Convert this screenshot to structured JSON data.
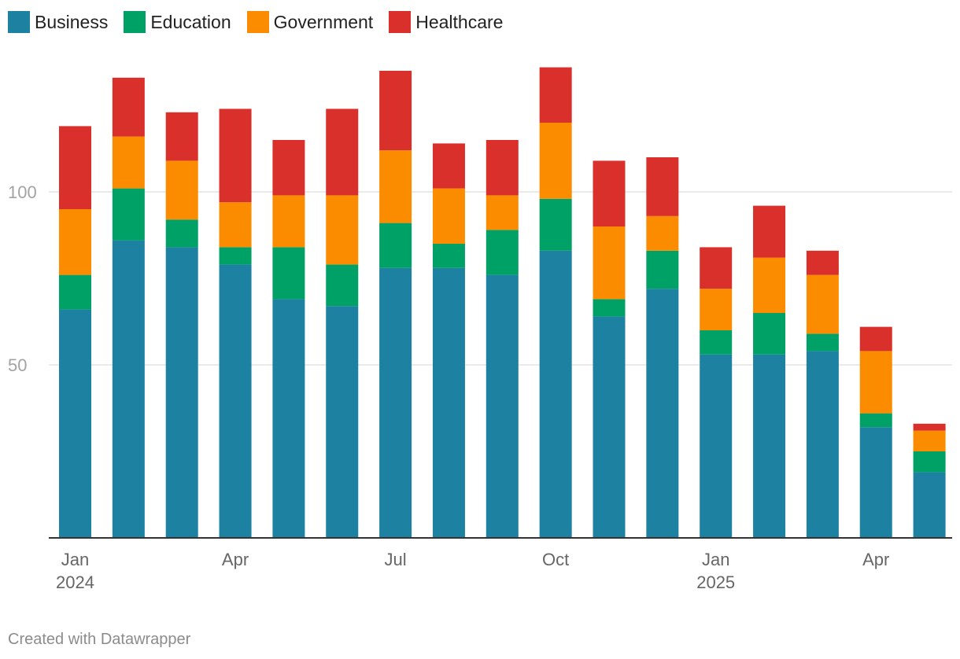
{
  "chart_data": {
    "type": "bar",
    "stacked": true,
    "categories": [
      "2024-01",
      "2024-02",
      "2024-03",
      "2024-04",
      "2024-05",
      "2024-06",
      "2024-07",
      "2024-08",
      "2024-09",
      "2024-10",
      "2024-11",
      "2024-12",
      "2025-01",
      "2025-02",
      "2025-03",
      "2025-04",
      "2025-05"
    ],
    "x_tick_labels": [
      {
        "index": 0,
        "line1": "Jan",
        "line2": "2024"
      },
      {
        "index": 3,
        "line1": "Apr",
        "line2": ""
      },
      {
        "index": 6,
        "line1": "Jul",
        "line2": ""
      },
      {
        "index": 9,
        "line1": "Oct",
        "line2": ""
      },
      {
        "index": 12,
        "line1": "Jan",
        "line2": "2025"
      },
      {
        "index": 15,
        "line1": "Apr",
        "line2": ""
      }
    ],
    "series": [
      {
        "name": "Business",
        "color": "#1d81a2",
        "values": [
          66,
          86,
          84,
          79,
          69,
          67,
          78,
          78,
          76,
          83,
          64,
          72,
          53,
          53,
          54,
          32,
          19
        ]
      },
      {
        "name": "Education",
        "color": "#00a166",
        "values": [
          10,
          15,
          8,
          5,
          15,
          12,
          13,
          7,
          13,
          15,
          5,
          11,
          7,
          12,
          5,
          4,
          6
        ]
      },
      {
        "name": "Government",
        "color": "#fb8c00",
        "values": [
          19,
          15,
          17,
          13,
          15,
          20,
          21,
          16,
          10,
          22,
          21,
          10,
          12,
          16,
          17,
          18,
          6
        ]
      },
      {
        "name": "Healthcare",
        "color": "#d9302b",
        "values": [
          24,
          17,
          14,
          27,
          16,
          25,
          23,
          13,
          16,
          16,
          19,
          17,
          12,
          15,
          7,
          7,
          2
        ]
      }
    ],
    "y_ticks": [
      50,
      100
    ],
    "ylim": [
      0,
      140
    ],
    "title": "",
    "xlabel": "",
    "ylabel": "",
    "grid": true,
    "legend_position": "top-left"
  },
  "footer": {
    "credit": "Created with Datawrapper"
  }
}
